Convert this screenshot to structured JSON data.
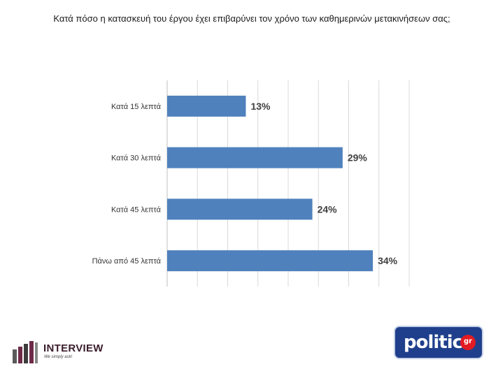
{
  "chart_data": {
    "type": "bar",
    "orientation": "horizontal",
    "title": "Κατά πόσο η κατασκευή του έργου έχει επιβαρύνει τον χρόνο των καθημερινών μετακινήσεων σας;",
    "categories": [
      "Κατά 15 λεπτά",
      "Κατά 30 λεπτά",
      "Κατά 45 λεπτά",
      "Πάνω από 45 λεπτά"
    ],
    "values": [
      13,
      29,
      24,
      34
    ],
    "value_labels": [
      "13%",
      "29%",
      "24%",
      "34%"
    ],
    "xlim": [
      0,
      40
    ],
    "grid": "vertical",
    "bar_color": "#4f81bd"
  },
  "logos": {
    "interview": {
      "name": "INTERVIEW",
      "tagline": "We simply ask!"
    },
    "politic": {
      "name": "politic",
      "suffix": "gr"
    }
  }
}
